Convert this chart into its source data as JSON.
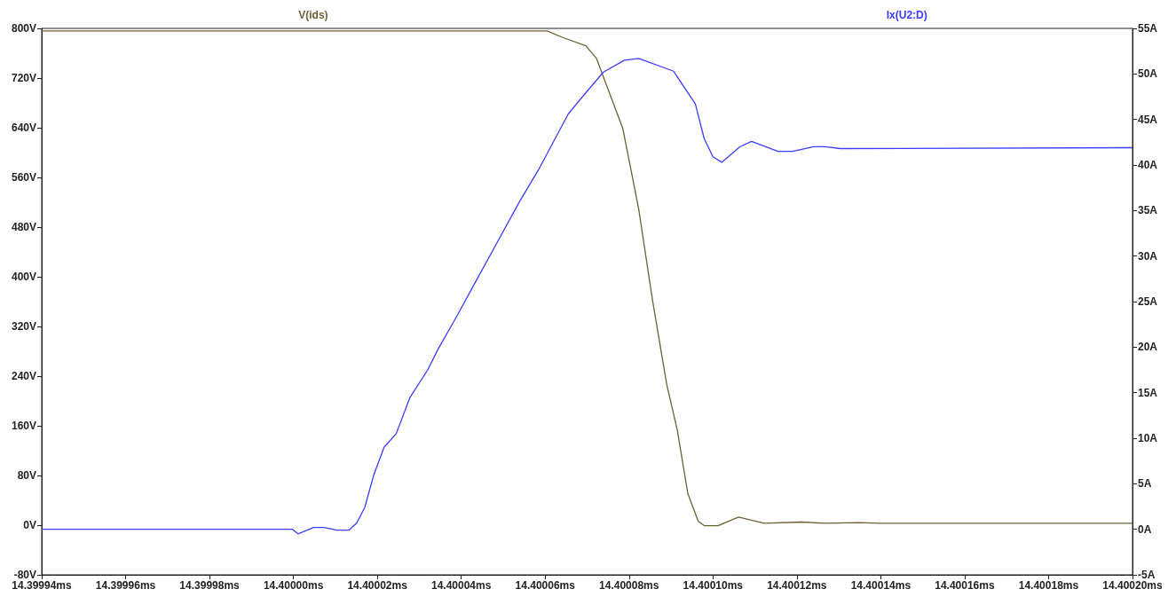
{
  "chart_data": {
    "type": "line",
    "legend": "top",
    "grid": false,
    "marker": "none",
    "line_style": "solid",
    "xlim": [
      14.39994,
      14.4002
    ],
    "xticks": [
      {
        "value": 14.39994,
        "label": "14.39994ms"
      },
      {
        "value": 14.39996,
        "label": "14.39996ms"
      },
      {
        "value": 14.39998,
        "label": "14.39998ms"
      },
      {
        "value": 14.4,
        "label": "14.40000ms"
      },
      {
        "value": 14.40002,
        "label": "14.40002ms"
      },
      {
        "value": 14.40004,
        "label": "14.40004ms"
      },
      {
        "value": 14.40006,
        "label": "14.40006ms"
      },
      {
        "value": 14.40008,
        "label": "14.40008ms"
      },
      {
        "value": 14.4001,
        "label": "14.40010ms"
      },
      {
        "value": 14.40012,
        "label": "14.40012ms"
      },
      {
        "value": 14.40014,
        "label": "14.40014ms"
      },
      {
        "value": 14.40016,
        "label": "14.40016ms"
      },
      {
        "value": 14.40018,
        "label": "14.40018ms"
      },
      {
        "value": 14.4002,
        "label": "14.40020ms"
      }
    ],
    "ylim": [
      -80,
      800
    ],
    "yticks": [
      {
        "value": -80,
        "label": "-80V"
      },
      {
        "value": 0,
        "label": "0V"
      },
      {
        "value": 80,
        "label": "80V"
      },
      {
        "value": 160,
        "label": "160V"
      },
      {
        "value": 240,
        "label": "240V"
      },
      {
        "value": 320,
        "label": "320V"
      },
      {
        "value": 400,
        "label": "400V"
      },
      {
        "value": 480,
        "label": "480V"
      },
      {
        "value": 560,
        "label": "560V"
      },
      {
        "value": 640,
        "label": "640V"
      },
      {
        "value": 720,
        "label": "720V"
      },
      {
        "value": 800,
        "label": "800V"
      }
    ],
    "y2lim": [
      -5,
      55
    ],
    "y2ticks": [
      {
        "value": -5,
        "label": "-5A"
      },
      {
        "value": 0,
        "label": "0A"
      },
      {
        "value": 5,
        "label": "5A"
      },
      {
        "value": 10,
        "label": "10A"
      },
      {
        "value": 15,
        "label": "15A"
      },
      {
        "value": 20,
        "label": "20A"
      },
      {
        "value": 25,
        "label": "25A"
      },
      {
        "value": 30,
        "label": "30A"
      },
      {
        "value": 35,
        "label": "35A"
      },
      {
        "value": 40,
        "label": "40A"
      },
      {
        "value": 45,
        "label": "45A"
      },
      {
        "value": 50,
        "label": "50A"
      },
      {
        "value": 55,
        "label": "55A"
      }
    ],
    "series": [
      {
        "name": "V(ids)",
        "color": "#6e6035",
        "x": [
          14.39994,
          14.4000605,
          14.4000643,
          14.4000697,
          14.4000722,
          14.4000785,
          14.4000823,
          14.4000856,
          14.400089,
          14.4000915,
          14.400094,
          14.4000965,
          14.400098,
          14.4001012,
          14.4001061,
          14.4001122,
          14.4001211,
          14.4001267,
          14.4001348,
          14.4001397,
          14.4002
        ],
        "values": [
          796,
          796,
          785,
          772,
          752,
          639,
          509,
          362,
          226,
          153,
          51,
          6,
          -1,
          -1,
          13,
          3,
          5,
          3,
          4,
          3,
          3
        ]
      },
      {
        "name": "Ix(U2:D)",
        "color": "#3c3cff",
        "axis": "y2",
        "x": [
          14.39994,
          14.3999998,
          14.4000011,
          14.4000048,
          14.4000073,
          14.4000103,
          14.4000132,
          14.4000151,
          14.400017,
          14.4000191,
          14.4000216,
          14.4000245,
          14.4000278,
          14.400032,
          14.4000345,
          14.4000387,
          14.4000438,
          14.4000488,
          14.4000538,
          14.4000588,
          14.4000655,
          14.4000689,
          14.4000739,
          14.4000789,
          14.4000823,
          14.4000906,
          14.4000958,
          14.4000979,
          14.4001,
          14.4001021,
          14.4001064,
          14.4001092,
          14.4001155,
          14.400119,
          14.400124,
          14.4001268,
          14.4001303,
          14.4002
        ],
        "values": [
          0,
          0,
          -0.5,
          0.2,
          0.2,
          -0.1,
          -0.1,
          0.7,
          2.4,
          5.9,
          9,
          10.5,
          14.5,
          17.5,
          19.8,
          23.2,
          27.5,
          31.7,
          35.9,
          39.8,
          45.6,
          47.5,
          50.2,
          51.5,
          51.7,
          50.3,
          46.7,
          42.9,
          40.9,
          40.3,
          42,
          42.6,
          41.5,
          41.5,
          42,
          42,
          41.8,
          41.9
        ]
      }
    ]
  }
}
